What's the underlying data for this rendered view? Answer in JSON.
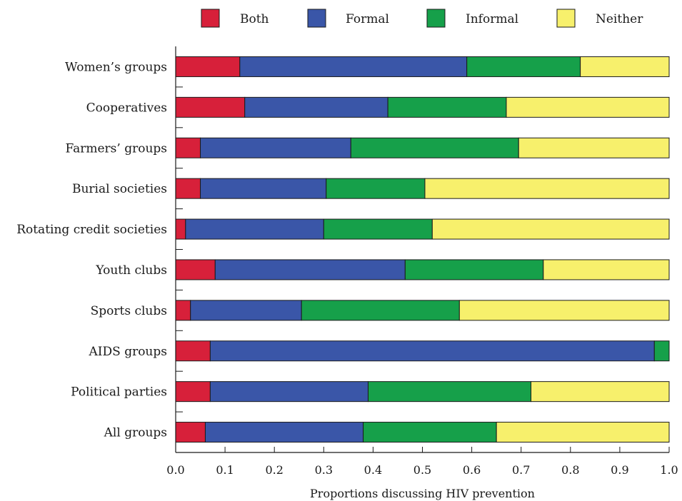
{
  "chart_data": {
    "type": "bar",
    "orientation": "horizontal",
    "stacked": true,
    "categories": [
      "Women’s groups",
      "Cooperatives",
      "Farmers’ groups",
      "Burial societies",
      "Rotating credit societies",
      "Youth clubs",
      "Sports clubs",
      "AIDS groups",
      "Political parties",
      "All groups"
    ],
    "series": [
      {
        "name": "Both",
        "color": "#d7203a",
        "values": [
          0.13,
          0.14,
          0.05,
          0.05,
          0.02,
          0.08,
          0.03,
          0.07,
          0.07,
          0.06
        ]
      },
      {
        "name": "Formal",
        "color": "#3a56a8",
        "values": [
          0.46,
          0.29,
          0.305,
          0.255,
          0.28,
          0.385,
          0.225,
          0.9,
          0.32,
          0.32
        ]
      },
      {
        "name": "Informal",
        "color": "#16a04a",
        "values": [
          0.23,
          0.24,
          0.34,
          0.2,
          0.22,
          0.28,
          0.32,
          0.03,
          0.33,
          0.27
        ]
      },
      {
        "name": "Neither",
        "color": "#f7f06c",
        "values": [
          0.18,
          0.33,
          0.305,
          0.495,
          0.48,
          0.255,
          0.425,
          0.0,
          0.28,
          0.35
        ]
      }
    ],
    "xlabel": "Proportions discussing HIV prevention",
    "ylabel": "",
    "xlim": [
      0,
      1
    ],
    "xticks": [
      "0.0",
      "0.1",
      "0.2",
      "0.3",
      "0.4",
      "0.5",
      "0.6",
      "0.7",
      "0.8",
      "0.9",
      "1.0"
    ],
    "grid": false,
    "legend": "top"
  }
}
